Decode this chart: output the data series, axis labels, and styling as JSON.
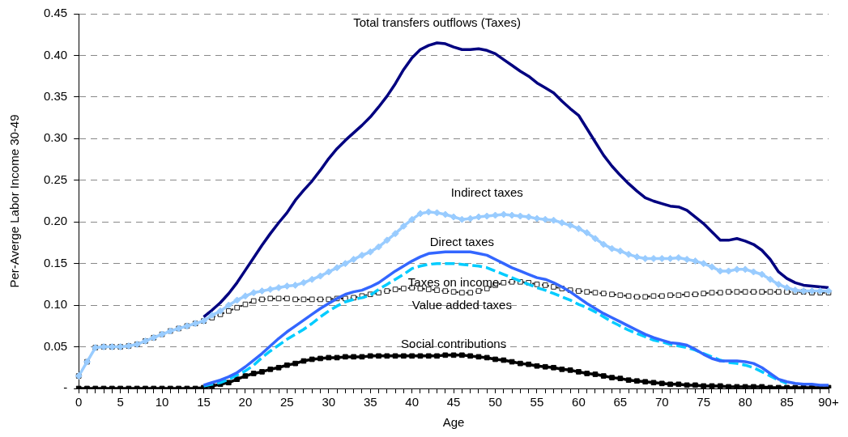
{
  "chart_data": {
    "type": "line",
    "xlabel": "Age",
    "ylabel": "Per-Averge Labor Income 30-49",
    "categories": [
      "0",
      null,
      null,
      null,
      null,
      "5",
      null,
      null,
      null,
      null,
      "10",
      null,
      null,
      null,
      null,
      "15",
      null,
      null,
      null,
      null,
      "20",
      null,
      null,
      null,
      null,
      "25",
      null,
      null,
      null,
      null,
      "30",
      null,
      null,
      null,
      null,
      "35",
      null,
      null,
      null,
      null,
      "40",
      null,
      null,
      null,
      null,
      "45",
      null,
      null,
      null,
      null,
      "50",
      null,
      null,
      null,
      null,
      "55",
      null,
      null,
      null,
      null,
      "60",
      null,
      null,
      null,
      null,
      "65",
      null,
      null,
      null,
      null,
      "70",
      null,
      null,
      null,
      null,
      "75",
      null,
      null,
      null,
      null,
      "80",
      null,
      null,
      null,
      null,
      "85",
      null,
      null,
      null,
      null,
      "90+"
    ],
    "ylim": [
      0,
      0.45
    ],
    "yticks": [
      {
        "value": 0,
        "label": "-"
      },
      {
        "value": 0.05,
        "label": "0.05"
      },
      {
        "value": 0.1,
        "label": "0.10"
      },
      {
        "value": 0.15,
        "label": "0.15"
      },
      {
        "value": 0.2,
        "label": "0.20"
      },
      {
        "value": 0.25,
        "label": "0.25"
      },
      {
        "value": 0.3,
        "label": "0.30"
      },
      {
        "value": 0.35,
        "label": "0.35"
      },
      {
        "value": 0.4,
        "label": "0.40"
      },
      {
        "value": 0.45,
        "label": "0.45"
      }
    ],
    "grid": "y",
    "legend": false,
    "series": [
      {
        "name": "Total transfers outflows (Taxes)",
        "color": "#000080",
        "marker": "none",
        "line_style": "solid",
        "values": [
          null,
          null,
          null,
          null,
          null,
          null,
          null,
          null,
          null,
          null,
          null,
          null,
          null,
          null,
          null,
          0.086,
          0.094,
          0.103,
          0.114,
          0.127,
          0.142,
          0.157,
          0.172,
          0.186,
          0.199,
          0.211,
          0.226,
          0.238,
          0.249,
          0.262,
          0.276,
          0.288,
          0.298,
          0.307,
          0.316,
          0.326,
          0.338,
          0.351,
          0.366,
          0.383,
          0.397,
          0.407,
          0.412,
          0.415,
          0.414,
          0.41,
          0.407,
          0.407,
          0.408,
          0.406,
          0.402,
          0.395,
          0.388,
          0.381,
          0.375,
          0.367,
          0.361,
          0.355,
          0.345,
          0.336,
          0.328,
          0.312,
          0.296,
          0.28,
          0.267,
          0.256,
          0.246,
          0.237,
          0.229,
          0.225,
          0.222,
          0.219,
          0.218,
          0.214,
          0.206,
          0.198,
          0.188,
          0.178,
          0.178,
          0.18,
          0.177,
          0.173,
          0.166,
          0.155,
          0.14,
          0.132,
          0.127,
          0.124,
          0.123,
          0.122,
          0.121
        ]
      },
      {
        "name": "Social contributions",
        "color": "#000000",
        "marker": "square",
        "line_style": "solid",
        "values": [
          0,
          0,
          0,
          0,
          0,
          0,
          0,
          0,
          0,
          0,
          0,
          0,
          0,
          0,
          0,
          0.001,
          0.003,
          0.005,
          0.007,
          0.011,
          0.015,
          0.018,
          0.02,
          0.023,
          0.025,
          0.028,
          0.03,
          0.033,
          0.035,
          0.036,
          0.037,
          0.037,
          0.038,
          0.038,
          0.038,
          0.039,
          0.039,
          0.039,
          0.039,
          0.039,
          0.039,
          0.039,
          0.039,
          0.039,
          0.04,
          0.04,
          0.04,
          0.039,
          0.038,
          0.037,
          0.035,
          0.034,
          0.032,
          0.03,
          0.029,
          0.027,
          0.026,
          0.025,
          0.023,
          0.022,
          0.02,
          0.018,
          0.017,
          0.015,
          0.013,
          0.012,
          0.01,
          0.009,
          0.008,
          0.007,
          0.006,
          0.005,
          0.005,
          0.004,
          0.004,
          0.003,
          0.003,
          0.003,
          0.002,
          0.002,
          0.002,
          0.002,
          0.002,
          0.001,
          0.001,
          0.001,
          0.001,
          0.001,
          0.001,
          0.001,
          0.001
        ]
      },
      {
        "name": "Value added taxes",
        "color": "#222222",
        "marker": "square",
        "line_style": "dotted",
        "values": [
          0.015,
          0.032,
          0.049,
          0.05,
          0.05,
          0.05,
          0.051,
          0.053,
          0.057,
          0.061,
          0.065,
          0.069,
          0.072,
          0.075,
          0.078,
          0.081,
          0.085,
          0.089,
          0.093,
          0.097,
          0.101,
          0.105,
          0.107,
          0.108,
          0.108,
          0.108,
          0.107,
          0.107,
          0.107,
          0.107,
          0.107,
          0.108,
          0.108,
          0.109,
          0.111,
          0.113,
          0.115,
          0.117,
          0.119,
          0.12,
          0.121,
          0.12,
          0.119,
          0.118,
          0.117,
          0.116,
          0.115,
          0.115,
          0.117,
          0.12,
          0.124,
          0.127,
          0.128,
          0.128,
          0.127,
          0.125,
          0.124,
          0.122,
          0.12,
          0.118,
          0.117,
          0.116,
          0.115,
          0.114,
          0.113,
          0.112,
          0.111,
          0.11,
          0.11,
          0.111,
          0.111,
          0.112,
          0.112,
          0.113,
          0.113,
          0.114,
          0.115,
          0.115,
          0.116,
          0.116,
          0.116,
          0.116,
          0.116,
          0.116,
          0.116,
          0.116,
          0.116,
          0.116,
          0.115,
          0.115,
          0.115
        ]
      },
      {
        "name": "Indirect taxes",
        "color": "#99ccff",
        "marker": "diamond",
        "line_style": "solid",
        "values": [
          0.015,
          0.032,
          0.049,
          0.05,
          0.05,
          0.05,
          0.051,
          0.053,
          0.057,
          0.061,
          0.065,
          0.069,
          0.072,
          0.075,
          0.078,
          0.081,
          0.088,
          0.093,
          0.1,
          0.106,
          0.111,
          0.115,
          0.117,
          0.119,
          0.121,
          0.123,
          0.124,
          0.127,
          0.131,
          0.135,
          0.14,
          0.145,
          0.15,
          0.155,
          0.16,
          0.164,
          0.17,
          0.178,
          0.186,
          0.195,
          0.203,
          0.21,
          0.212,
          0.211,
          0.209,
          0.206,
          0.203,
          0.204,
          0.206,
          0.207,
          0.208,
          0.209,
          0.208,
          0.207,
          0.206,
          0.204,
          0.203,
          0.202,
          0.199,
          0.196,
          0.192,
          0.187,
          0.18,
          0.173,
          0.168,
          0.165,
          0.161,
          0.158,
          0.156,
          0.156,
          0.156,
          0.156,
          0.157,
          0.155,
          0.153,
          0.15,
          0.146,
          0.141,
          0.141,
          0.143,
          0.143,
          0.14,
          0.137,
          0.131,
          0.125,
          0.121,
          0.118,
          0.117,
          0.117,
          0.117,
          0.117
        ]
      },
      {
        "name": "Taxes on income",
        "color": "#00ccff",
        "marker": "none",
        "line_style": "dashed",
        "values": [
          null,
          null,
          null,
          null,
          null,
          null,
          null,
          null,
          null,
          null,
          null,
          null,
          null,
          null,
          null,
          0.003,
          0.005,
          0.007,
          0.011,
          0.016,
          0.021,
          0.028,
          0.037,
          0.045,
          0.052,
          0.059,
          0.065,
          0.071,
          0.078,
          0.086,
          0.093,
          0.099,
          0.104,
          0.107,
          0.109,
          0.112,
          0.119,
          0.125,
          0.131,
          0.137,
          0.144,
          0.147,
          0.149,
          0.15,
          0.15,
          0.15,
          0.149,
          0.148,
          0.147,
          0.145,
          0.141,
          0.137,
          0.133,
          0.129,
          0.125,
          0.121,
          0.118,
          0.114,
          0.11,
          0.106,
          0.101,
          0.097,
          0.092,
          0.086,
          0.08,
          0.075,
          0.07,
          0.066,
          0.062,
          0.058,
          0.056,
          0.053,
          0.051,
          0.049,
          0.046,
          0.042,
          0.038,
          0.034,
          0.031,
          0.03,
          0.028,
          0.025,
          0.02,
          0.015,
          0.01,
          0.006,
          null,
          null,
          null,
          null,
          null
        ]
      },
      {
        "name": "Direct taxes",
        "color": "#3366ff",
        "marker": "none",
        "line_style": "solid",
        "values": [
          null,
          null,
          null,
          null,
          null,
          null,
          null,
          null,
          null,
          null,
          null,
          null,
          null,
          null,
          null,
          0.004,
          0.007,
          0.01,
          0.014,
          0.019,
          0.026,
          0.034,
          0.042,
          0.051,
          0.06,
          0.068,
          0.075,
          0.082,
          0.089,
          0.096,
          0.102,
          0.108,
          0.113,
          0.116,
          0.118,
          0.122,
          0.127,
          0.134,
          0.141,
          0.147,
          0.153,
          0.158,
          0.162,
          0.163,
          0.164,
          0.164,
          0.164,
          0.164,
          0.162,
          0.16,
          0.155,
          0.15,
          0.145,
          0.141,
          0.137,
          0.133,
          0.131,
          0.127,
          0.122,
          0.116,
          0.109,
          0.102,
          0.096,
          0.09,
          0.085,
          0.08,
          0.075,
          0.07,
          0.065,
          0.061,
          0.058,
          0.055,
          0.054,
          0.052,
          0.047,
          0.041,
          0.036,
          0.033,
          0.033,
          0.033,
          0.032,
          0.03,
          0.025,
          0.018,
          0.011,
          0.008,
          0.006,
          0.005,
          0.005,
          0.004,
          0.004
        ]
      }
    ]
  }
}
